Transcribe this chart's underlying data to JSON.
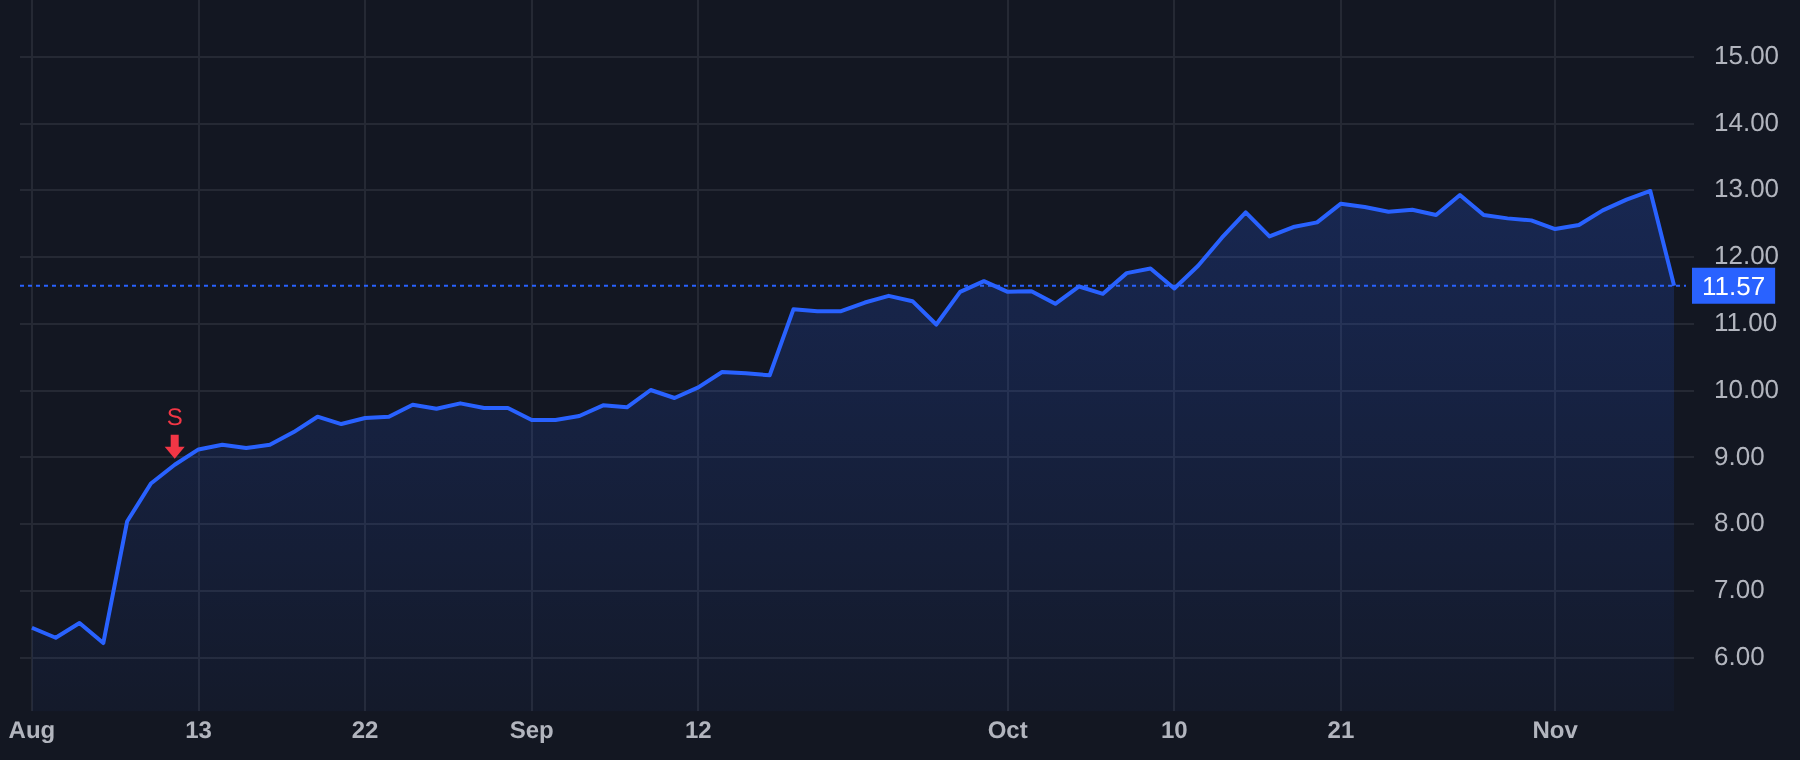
{
  "chart_data": {
    "type": "area",
    "categories": [
      "Aug",
      null,
      null,
      null,
      null,
      null,
      null,
      "13",
      null,
      null,
      null,
      null,
      null,
      null,
      "22",
      null,
      null,
      null,
      null,
      null,
      null,
      "Sep",
      null,
      null,
      null,
      null,
      null,
      null,
      "12",
      null,
      null,
      null,
      null,
      null,
      null,
      null,
      null,
      null,
      null,
      null,
      null,
      "Oct",
      null,
      null,
      null,
      null,
      null,
      null,
      "10",
      null,
      null,
      null,
      null,
      null,
      null,
      "21",
      null,
      null,
      null,
      null,
      null,
      null,
      null,
      null,
      "Nov",
      null,
      null,
      null,
      null,
      null
    ],
    "series": [
      {
        "color": "#2962ff",
        "values": [
          6.45,
          6.3,
          6.52,
          6.22,
          8.04,
          8.61,
          8.89,
          9.12,
          9.19,
          9.14,
          9.19,
          9.38,
          9.61,
          9.5,
          9.59,
          9.61,
          9.79,
          9.73,
          9.81,
          9.74,
          9.74,
          9.56,
          9.56,
          9.62,
          9.78,
          9.75,
          10.01,
          9.89,
          10.05,
          10.28,
          10.26,
          10.23,
          11.22,
          11.19,
          11.19,
          11.32,
          11.42,
          11.34,
          10.99,
          11.48,
          11.64,
          11.48,
          11.49,
          11.3,
          11.56,
          11.45,
          11.76,
          11.83,
          11.53,
          11.87,
          12.29,
          12.67,
          12.31,
          12.45,
          12.52,
          12.8,
          12.75,
          12.68,
          12.71,
          12.63,
          12.93,
          12.63,
          12.58,
          12.55,
          12.42,
          12.48,
          12.7,
          12.86,
          12.99,
          11.57
        ],
        "value_labels": [
          null,
          null,
          null,
          null,
          null,
          null,
          "S",
          null,
          null,
          null,
          null,
          null,
          null,
          null,
          null,
          null,
          null,
          null,
          null,
          null,
          null,
          null,
          null,
          null,
          null,
          null,
          null,
          null,
          null,
          null,
          null,
          null,
          null,
          null,
          null,
          null,
          null,
          null,
          null,
          null,
          null,
          null,
          null,
          null,
          null,
          null,
          null,
          null,
          null,
          null,
          null,
          null,
          null,
          null,
          null,
          null,
          null,
          null,
          null,
          null,
          null,
          null,
          null,
          null,
          null,
          null,
          null,
          null,
          null,
          null
        ]
      }
    ],
    "ylim": [
      5.2,
      15.85
    ],
    "yticks": [
      {
        "value": 6,
        "label": "6.00"
      },
      {
        "value": 7,
        "label": "7.00"
      },
      {
        "value": 8,
        "label": "8.00"
      },
      {
        "value": 9,
        "label": "9.00"
      },
      {
        "value": 10,
        "label": "10.00"
      },
      {
        "value": 11,
        "label": "11.00"
      },
      {
        "value": 12,
        "label": "12.00"
      },
      {
        "value": 13,
        "label": "13.00"
      },
      {
        "value": 14,
        "label": "14.00"
      },
      {
        "value": 15,
        "label": "15.00"
      }
    ],
    "grid": true,
    "legend": false,
    "marker": "none",
    "line_style": "solid",
    "ref_lines": [
      {
        "axis": "y",
        "value": 11.57,
        "label": "11.57",
        "color": "#2962ff",
        "line_style": "dotted"
      }
    ]
  }
}
